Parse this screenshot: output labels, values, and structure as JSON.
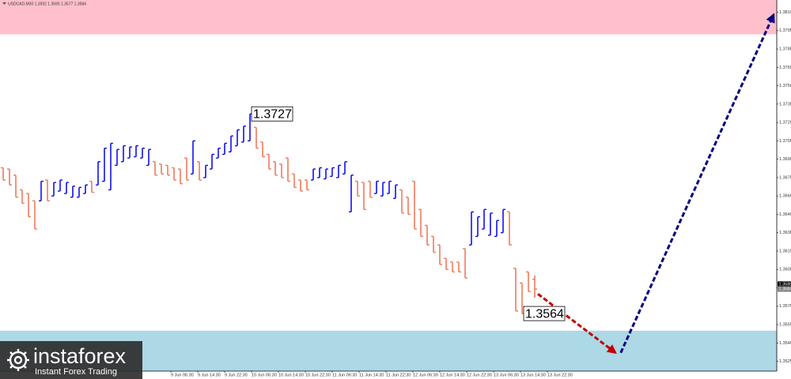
{
  "chart_data": {
    "type": "ohlc",
    "symbol": "USDCAD,M30  1.3592 1.3595 1.3577 1.3584",
    "up_color": "#1010ee",
    "down_color": "#f07a5c",
    "xlim": [
      -0.5,
      122.25
    ],
    "ylim": [
      1.3517,
      1.382
    ],
    "yticks": [
      1.3525,
      {
        "value": 1.354,
        "label": "1.3540"
      },
      1.3555,
      {
        "value": 1.357,
        "label": "1.3570"
      },
      1.3585,
      {
        "value": 1.36,
        "label": "1.3600"
      },
      1.3615,
      {
        "value": 1.363,
        "label": "1.3630"
      },
      1.3645,
      {
        "value": 1.366,
        "label": "1.3660"
      },
      1.3675,
      {
        "value": 1.369,
        "label": "1.3690"
      },
      1.3705,
      {
        "value": 1.372,
        "label": "1.3720"
      },
      1.3735,
      {
        "value": 1.375,
        "label": "1.3750"
      },
      1.3765,
      {
        "value": 1.378,
        "label": "1.3780"
      },
      1.3795,
      {
        "value": 1.381,
        "label": "1.3810"
      }
    ],
    "xticks": [
      {
        "value": 26.5,
        "label": "9 Jun 06:30"
      },
      {
        "value": 30.75,
        "label": "9 Jun 14:30"
      },
      {
        "value": 35,
        "label": "9 Jun 22:30"
      },
      {
        "value": 39.25,
        "label": "10 Jun 06:30"
      },
      {
        "value": 43.5,
        "label": "10 Jun 14:30"
      },
      {
        "value": 47.75,
        "label": "10 Jun 22:30"
      },
      {
        "value": 52,
        "label": "11 Jun 06:30"
      },
      {
        "value": 56.25,
        "label": "11 Jun 14:30"
      },
      {
        "value": 60.5,
        "label": "11 Jun 22:30"
      },
      {
        "value": 64.75,
        "label": "12 Jun 06:30"
      },
      {
        "value": 69,
        "label": "12 Jun 14:30"
      },
      {
        "value": 73.25,
        "label": "12 Jun 22:30"
      },
      {
        "value": 77.5,
        "label": "13 Jun 06:30"
      },
      {
        "value": 81.75,
        "label": "13 Jun 14:30"
      },
      {
        "value": 86,
        "label": "13 Jun 22:30"
      }
    ],
    "open": [
      1.3683,
      1.3682,
      1.3677,
      1.3665,
      1.3662,
      1.3656,
      1.3656,
      1.3673,
      1.366,
      1.3664,
      1.3662,
      1.3659,
      1.3659,
      1.3662,
      1.3672,
      1.3669,
      1.3672,
      1.3665,
      1.3685,
      1.3688,
      1.3691,
      1.3692,
      1.3691,
      1.3685,
      1.3688,
      1.3686,
      1.3685,
      1.3683,
      1.3682,
      1.3691,
      1.3678,
      1.3688,
      1.3675,
      1.3682,
      1.3691,
      1.3694,
      1.3696,
      1.3701,
      1.3704,
      1.3705,
      1.3716,
      1.3704,
      1.3694,
      1.3688,
      1.3686,
      1.3691,
      1.3678,
      1.3673,
      1.3673,
      1.3673,
      1.3675,
      1.3674,
      1.3676,
      1.3675,
      1.3678,
      1.3647,
      1.3672,
      1.3671,
      1.3672,
      1.3662,
      1.366,
      1.3662,
      1.3658,
      1.3665,
      1.3659,
      1.3672,
      1.3649,
      1.3636,
      1.3627,
      1.362,
      1.3609,
      1.3606,
      1.3606,
      1.3617,
      1.362,
      1.3627,
      1.3633,
      1.3628,
      1.3627,
      1.363,
      1.3647,
      1.3601,
      1.3589,
      1.3598,
      1.3592
    ],
    "high": [
      1.3683,
      1.3682,
      1.3677,
      1.3665,
      1.3662,
      1.3656,
      1.3672,
      1.3673,
      1.3671,
      1.3673,
      1.3671,
      1.3668,
      1.3667,
      1.3669,
      1.3672,
      1.3688,
      1.3699,
      1.3703,
      1.3698,
      1.3701,
      1.37,
      1.3701,
      1.3699,
      1.3698,
      1.3688,
      1.3686,
      1.3685,
      1.3683,
      1.3682,
      1.3691,
      1.3705,
      1.3688,
      1.3685,
      1.3694,
      1.3699,
      1.3703,
      1.3709,
      1.3714,
      1.3717,
      1.3727,
      1.3716,
      1.3704,
      1.3694,
      1.3688,
      1.3686,
      1.3691,
      1.3678,
      1.3673,
      1.3673,
      1.3682,
      1.3683,
      1.3682,
      1.3683,
      1.3685,
      1.3688,
      1.3677,
      1.3672,
      1.3671,
      1.3672,
      1.3672,
      1.3671,
      1.3672,
      1.3669,
      1.3665,
      1.3659,
      1.3672,
      1.3649,
      1.3636,
      1.3627,
      1.362,
      1.3609,
      1.3606,
      1.3606,
      1.3617,
      1.3647,
      1.3643,
      1.3649,
      1.3646,
      1.364,
      1.3649,
      1.3647,
      1.3601,
      1.3589,
      1.3598,
      1.3595
    ],
    "low": [
      1.3673,
      1.3669,
      1.3659,
      1.3654,
      1.3643,
      1.3633,
      1.3656,
      1.3656,
      1.366,
      1.3664,
      1.3662,
      1.3659,
      1.3659,
      1.3662,
      1.3663,
      1.3669,
      1.3672,
      1.3665,
      1.3685,
      1.3688,
      1.3691,
      1.3692,
      1.3691,
      1.3685,
      1.3677,
      1.3678,
      1.3677,
      1.3673,
      1.367,
      1.3673,
      1.3678,
      1.3673,
      1.3675,
      1.3682,
      1.3691,
      1.3694,
      1.3696,
      1.3701,
      1.3704,
      1.3705,
      1.3699,
      1.3692,
      1.3682,
      1.3677,
      1.3675,
      1.3672,
      1.3667,
      1.3664,
      1.3665,
      1.3673,
      1.3675,
      1.3674,
      1.3676,
      1.3675,
      1.3678,
      1.3647,
      1.366,
      1.3649,
      1.3659,
      1.3662,
      1.366,
      1.3662,
      1.3658,
      1.3646,
      1.3645,
      1.3633,
      1.3627,
      1.362,
      1.3614,
      1.3604,
      1.36,
      1.3598,
      1.3598,
      1.3593,
      1.362,
      1.3627,
      1.3633,
      1.3628,
      1.3627,
      1.363,
      1.362,
      1.3566,
      1.3564,
      1.3582,
      1.3577
    ],
    "close": [
      1.3673,
      1.3669,
      1.3659,
      1.3654,
      1.3643,
      1.3633,
      1.3672,
      1.3656,
      1.3671,
      1.3673,
      1.3671,
      1.3668,
      1.3667,
      1.3669,
      1.3663,
      1.3688,
      1.3699,
      1.3703,
      1.3698,
      1.3701,
      1.37,
      1.3701,
      1.3699,
      1.3698,
      1.3677,
      1.3678,
      1.3677,
      1.3673,
      1.367,
      1.3673,
      1.3705,
      1.3673,
      1.3685,
      1.3694,
      1.3699,
      1.3703,
      1.3709,
      1.3714,
      1.3717,
      1.3727,
      1.3699,
      1.3692,
      1.3682,
      1.3677,
      1.3675,
      1.3672,
      1.3667,
      1.3664,
      1.3665,
      1.3682,
      1.3683,
      1.3682,
      1.3683,
      1.3685,
      1.3688,
      1.3677,
      1.366,
      1.3649,
      1.3659,
      1.3672,
      1.3671,
      1.3672,
      1.3669,
      1.3646,
      1.3645,
      1.3633,
      1.3627,
      1.362,
      1.3614,
      1.3604,
      1.36,
      1.3598,
      1.3598,
      1.3593,
      1.3647,
      1.3643,
      1.3649,
      1.3646,
      1.364,
      1.3649,
      1.362,
      1.3566,
      1.3564,
      1.3582,
      1.3584
    ],
    "zones": [
      {
        "y": [
          1.3792,
          1.382
        ],
        "color": "#ffc0cb"
      },
      {
        "y": [
          1.3517,
          1.355
        ],
        "color": "#add8e6"
      }
    ],
    "annotations": [
      {
        "x": 39,
        "y": 1.3727
      },
      {
        "x": 82,
        "y": 1.3564
      }
    ],
    "arrows": [
      {
        "color": "#c00000",
        "x": [
          84.5,
          96.75
        ],
        "y": [
          1.358,
          1.3532
        ]
      },
      {
        "color": "#000080",
        "x": [
          97.6,
          121.75
        ],
        "y": [
          1.3532,
          1.3808
        ]
      }
    ],
    "price_labels": [
      1.3588,
      1.3584
    ],
    "price_label_colors": [
      "#000000",
      "#808080"
    ]
  },
  "logo": {
    "name": "instaforex",
    "tagline": "Instant Forex Trading"
  }
}
